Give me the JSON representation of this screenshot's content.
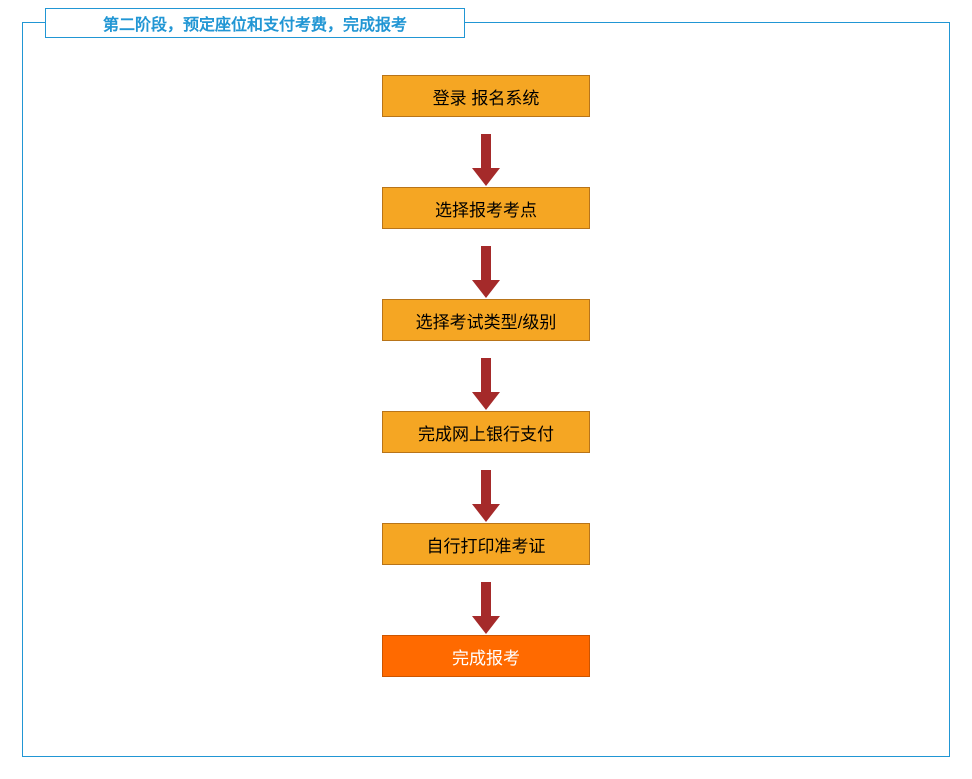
{
  "title": "第二阶段，预定座位和支付考费，完成报考",
  "flowchart": {
    "type": "flowchart",
    "arrow_color": "#a52a2a",
    "border_color": "#2196d4",
    "title_color": "#2196d4",
    "steps": [
      {
        "label": "登录 报名系统",
        "bg": "#f5a623",
        "fg": "#000000",
        "border": "#b87419"
      },
      {
        "label": "选择报考考点",
        "bg": "#f5a623",
        "fg": "#000000",
        "border": "#b87419"
      },
      {
        "label": "选择考试类型/级别",
        "bg": "#f5a623",
        "fg": "#000000",
        "border": "#b87419"
      },
      {
        "label": "完成网上银行支付",
        "bg": "#f5a623",
        "fg": "#000000",
        "border": "#b87419"
      },
      {
        "label": "自行打印准考证",
        "bg": "#f5a623",
        "fg": "#000000",
        "border": "#b87419"
      },
      {
        "label": "完成报考",
        "bg": "#ff6a00",
        "fg": "#ffffff",
        "border": "#cc5500"
      }
    ]
  }
}
